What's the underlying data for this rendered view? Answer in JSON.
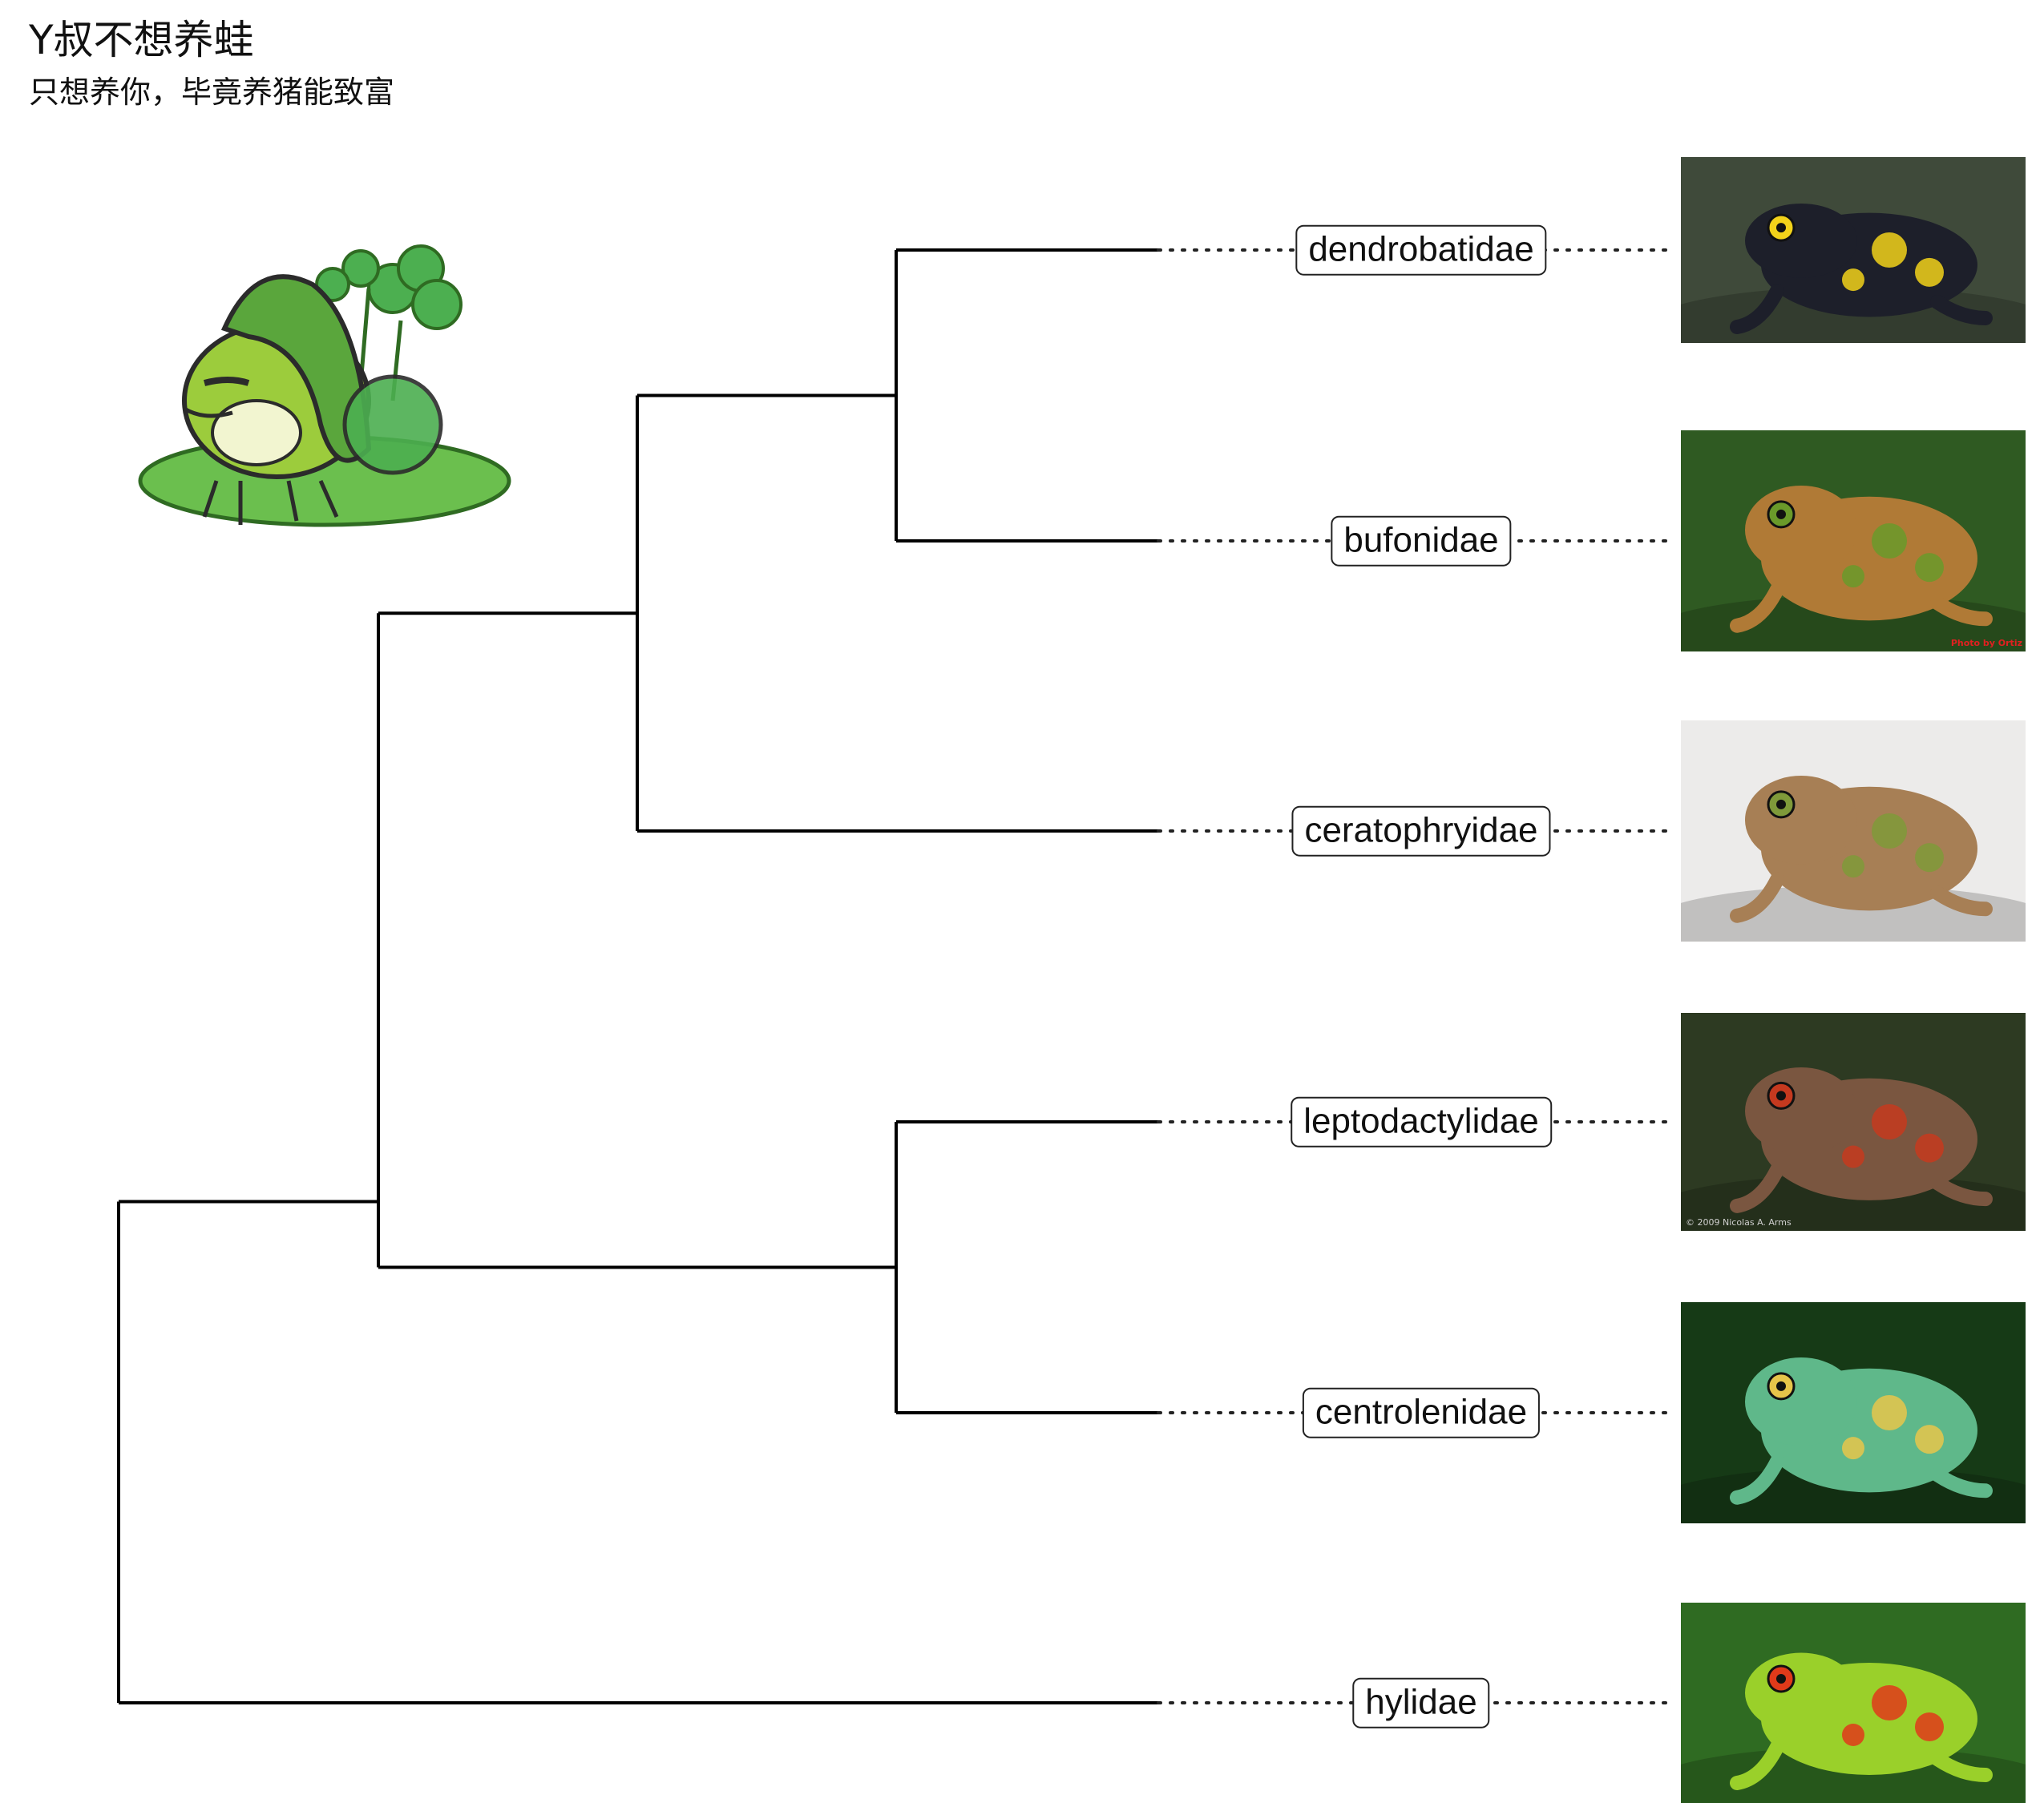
{
  "header": {
    "title": "Y叔不想养蛙",
    "subtitle": "只想养你，毕竟养猪能致富"
  },
  "tree": {
    "taxa": [
      {
        "name": "dendrobatidae",
        "photo_colors": {
          "bg": "#3f4a3a",
          "body": "#1d1f2a",
          "accent": "#f2d21a"
        }
      },
      {
        "name": "bufonidae",
        "photo_colors": {
          "bg": "#2f5a22",
          "body": "#b07a36",
          "accent": "#6a9a2a"
        }
      },
      {
        "name": "ceratophryidae",
        "photo_colors": {
          "bg": "#ecebea",
          "body": "#a77f55",
          "accent": "#7f9a3a"
        }
      },
      {
        "name": "leptodactylidae",
        "photo_colors": {
          "bg": "#2d3a22",
          "body": "#7a5640",
          "accent": "#c5391f"
        }
      },
      {
        "name": "centrolenidae",
        "photo_colors": {
          "bg": "#163a16",
          "body": "#5fb88a",
          "accent": "#e7c54a"
        }
      },
      {
        "name": "hylidae",
        "photo_colors": {
          "bg": "#2f6b22",
          "body": "#9ad02a",
          "accent": "#e03a1a"
        }
      }
    ],
    "line_color": "#000000",
    "dot_color": "#222222"
  },
  "photo_credits": {
    "bufonidae": "Photo by Ortiz",
    "leptodactylidae": "© 2009 Nicolas A. Arms"
  },
  "mascot": {
    "icon": "frog-with-leaf-hat-icon",
    "colors": {
      "frog": "#9ccc3c",
      "leaf": "#5aa63c",
      "clover": "#4caf50",
      "ground": "#6bbf4e"
    }
  }
}
